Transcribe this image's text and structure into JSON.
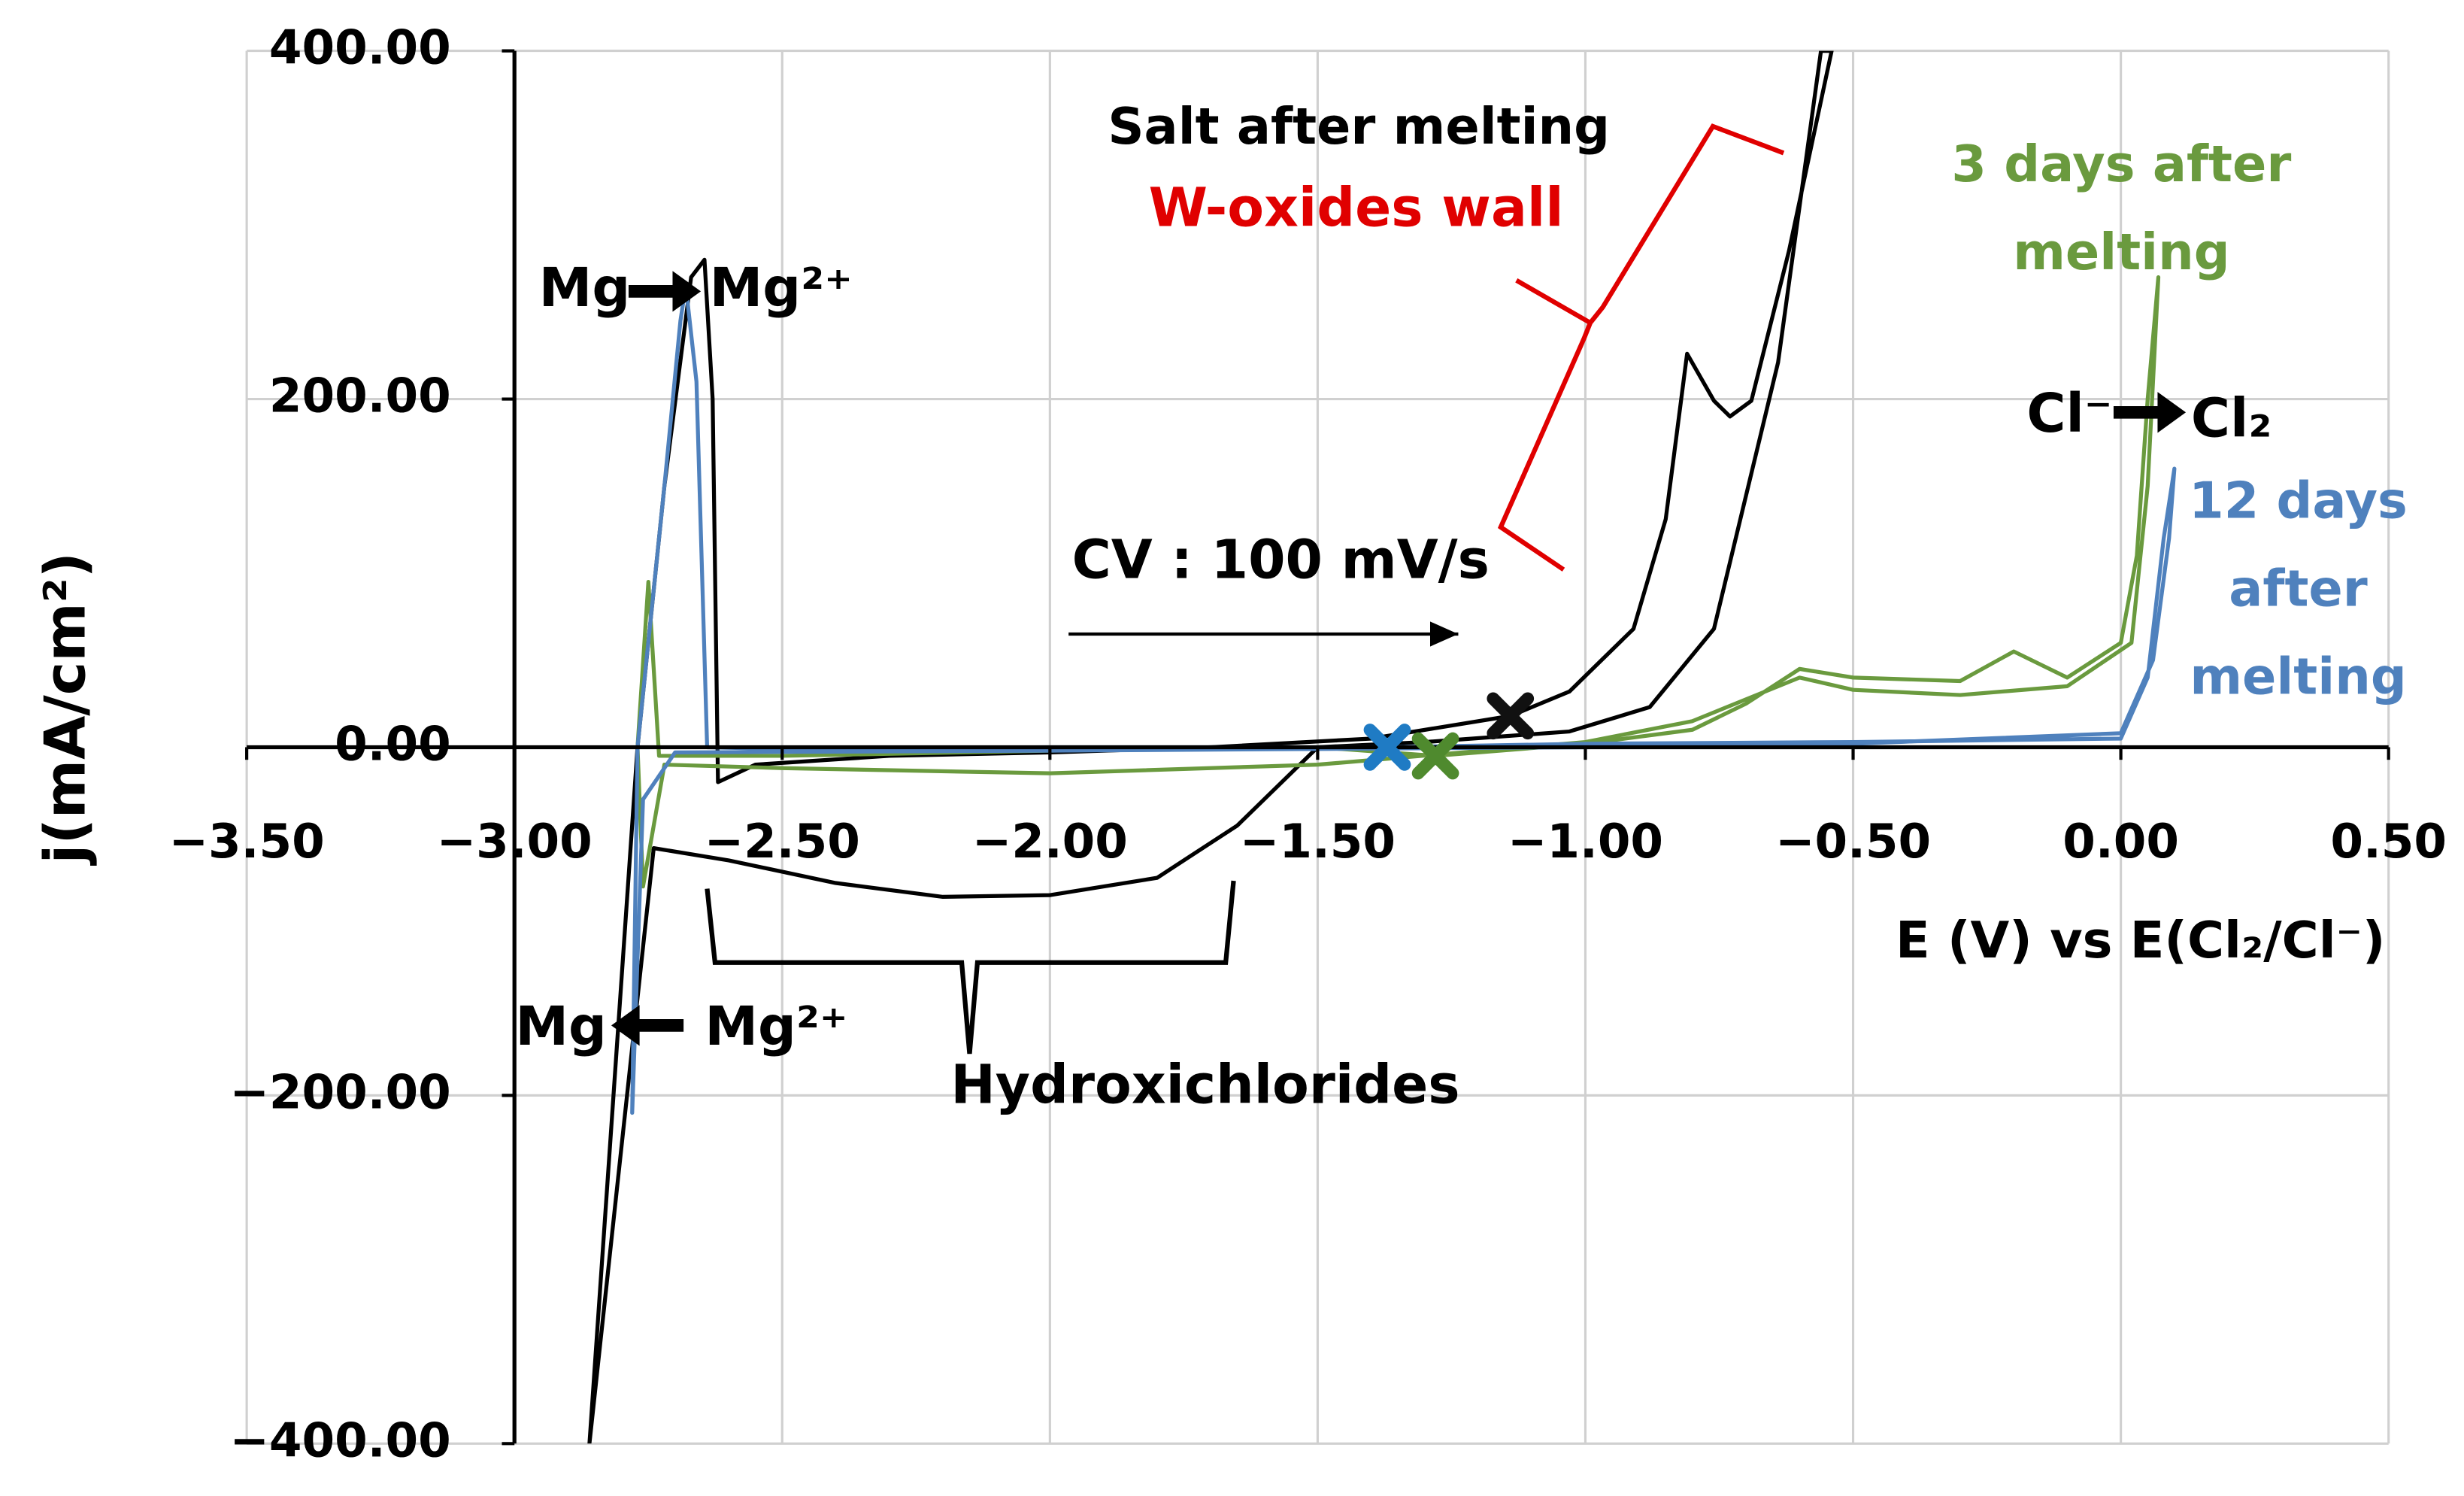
{
  "chart_data": {
    "type": "line",
    "x_label": "E (V) vs E(Cl₂/Cl⁻)",
    "y_label": "j(mA/cm²)",
    "xlim": [
      -3.5,
      0.5
    ],
    "xticks": [
      {
        "value": -3.5,
        "label": "−3.50"
      },
      {
        "value": -3.0,
        "label": "−3.00"
      },
      {
        "value": -2.5,
        "label": "−2.50"
      },
      {
        "value": -2.0,
        "label": "−2.00"
      },
      {
        "value": -1.5,
        "label": "−1.50"
      },
      {
        "value": -1.0,
        "label": "−1.00"
      },
      {
        "value": -0.5,
        "label": "−0.50"
      },
      {
        "value": 0,
        "label": "0.00"
      },
      {
        "value": 0.5,
        "label": "0.50"
      }
    ],
    "ylim": [
      -400,
      400
    ],
    "yticks": [
      {
        "value": -400,
        "label": "−400.00"
      },
      {
        "value": -200,
        "label": "−200.00"
      },
      {
        "value": 0,
        "label": "0.00"
      },
      {
        "value": 200,
        "label": "200.00"
      },
      {
        "value": 400,
        "label": "400.00"
      }
    ],
    "y_axis_crosses_x": -3.0,
    "grid": true,
    "series": [
      {
        "name": "Salt after melting",
        "color": "#000000",
        "marker_color": "#111111",
        "marker_x": -1.14,
        "marker_y": 18,
        "x": [
          -1.14,
          -1.03,
          -0.91,
          -0.85,
          -0.81,
          -0.76,
          -0.73,
          -0.69,
          -0.62,
          -0.54,
          -0.56,
          -0.64,
          -0.76,
          -0.88,
          -1.03,
          -1.3,
          -1.5,
          -1.6,
          -1.65,
          -1.8,
          -2.0,
          -2.2,
          -2.4,
          -2.6,
          -2.74,
          -2.86,
          -2.77,
          -2.72,
          -2.67,
          -2.645,
          -2.63,
          -2.62,
          -2.55,
          -2.3,
          -2.0,
          -1.7,
          -1.4,
          -1.14
        ],
        "values": [
          18,
          32,
          68,
          131,
          226,
          199,
          190,
          199,
          285,
          400,
          400,
          221,
          68,
          23,
          9,
          3,
          0,
          -30,
          -45,
          -75,
          -85,
          -86,
          -78,
          -65,
          -58,
          -400,
          0,
          150,
          270,
          280,
          200,
          -20,
          -10,
          -5,
          -3,
          0,
          5,
          18
        ]
      },
      {
        "name": "3 days after melting",
        "color": "#6a9a3e",
        "marker_color": "#4f8a2e",
        "marker_x": -1.28,
        "marker_y": -5,
        "x": [
          -1.28,
          -1.0,
          -0.8,
          -0.7,
          -0.6,
          -0.5,
          -0.3,
          -0.2,
          -0.1,
          0.0,
          0.03,
          0.05,
          0.07,
          0.05,
          0.02,
          -0.1,
          -0.3,
          -0.5,
          -0.6,
          -0.8,
          -1.0,
          -1.5,
          -2.0,
          -2.5,
          -2.72,
          -2.76,
          -2.77,
          -2.75,
          -2.73,
          -2.5,
          -2.0,
          -1.5,
          -1.28
        ],
        "values": [
          -5,
          2,
          10,
          25,
          45,
          40,
          38,
          55,
          40,
          60,
          110,
          200,
          270,
          150,
          60,
          35,
          30,
          33,
          40,
          15,
          3,
          -10,
          -15,
          -12,
          -10,
          -80,
          0,
          95,
          -5,
          -5,
          -2,
          0,
          -5
        ]
      },
      {
        "name": "12 days after melting",
        "color": "#4f81bd",
        "marker_color": "#1f7bc4",
        "marker_x": -1.37,
        "marker_y": 0,
        "x": [
          -1.37,
          -1.0,
          -0.5,
          0.0,
          0.05,
          0.08,
          0.1,
          0.09,
          0.06,
          0.0,
          -0.5,
          -1.0,
          -2.0,
          -2.7,
          -2.76,
          -2.78,
          -2.77,
          -2.72,
          -2.69,
          -2.68,
          -2.66,
          -2.64,
          -2.5,
          -2.0,
          -1.37
        ],
        "values": [
          0,
          2,
          3,
          5,
          40,
          120,
          160,
          120,
          50,
          8,
          2,
          0,
          -2,
          -3,
          -30,
          -210,
          0,
          150,
          245,
          265,
          210,
          0,
          -1,
          0,
          0
        ]
      }
    ],
    "annotations": [
      {
        "text": "Mg",
        "color": "#000000"
      },
      {
        "text": "Mg²⁺",
        "color": "#000000"
      },
      {
        "text": "Mg",
        "color": "#000000"
      },
      {
        "text": "Mg²⁺",
        "color": "#000000"
      },
      {
        "text": "Cl⁻",
        "color": "#000000"
      },
      {
        "text": "Cl₂",
        "color": "#000000"
      },
      {
        "text": "CV : 100 mV/s",
        "color": "#000000"
      },
      {
        "text": "Hydroxichlorides",
        "color": "#000000"
      },
      {
        "text": "W-oxides wall",
        "color": "#e00000"
      }
    ]
  }
}
